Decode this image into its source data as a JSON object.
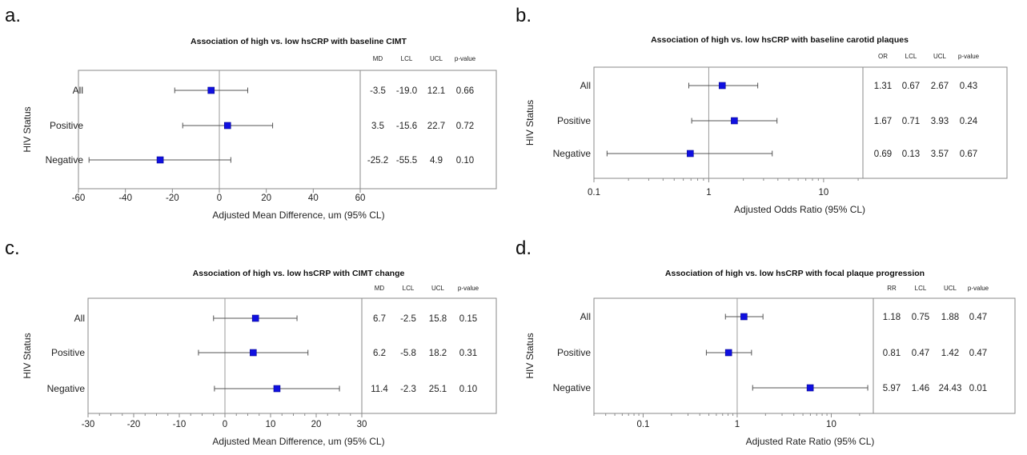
{
  "chart_data": [
    {
      "panel_label": "a.",
      "type": "forest",
      "title": "Association of high vs. low hsCRP with baseline CIMT",
      "xlabel": "Adjusted Mean Difference, um (95% CL)",
      "ylabel": "HIV Status",
      "scale": "linear",
      "xlim": [
        -60,
        60
      ],
      "xticks": [
        "-60",
        "-40",
        "-20",
        "0",
        "20",
        "40",
        "60"
      ],
      "columns": [
        "MD",
        "LCL",
        "UCL",
        "p-value"
      ],
      "reference_line": 0,
      "rows": [
        {
          "label": "All",
          "est": -3.5,
          "lcl": -19.0,
          "ucl": 12.1,
          "cells": [
            "-3.5",
            "-19.0",
            "12.1",
            "0.66"
          ]
        },
        {
          "label": "Positive",
          "est": 3.5,
          "lcl": -15.6,
          "ucl": 22.7,
          "cells": [
            "3.5",
            "-15.6",
            "22.7",
            "0.72"
          ]
        },
        {
          "label": "Negative",
          "est": -25.2,
          "lcl": -55.5,
          "ucl": 4.9,
          "cells": [
            "-25.2",
            "-55.5",
            "4.9",
            "0.10"
          ]
        }
      ]
    },
    {
      "panel_label": "b.",
      "type": "forest",
      "title": "Association of high vs. low hsCRP with baseline carotid plaques",
      "xlabel": "Adjusted Odds Ratio (95% CL)",
      "ylabel": "HIV Status",
      "scale": "log",
      "xlim": [
        0.1,
        22
      ],
      "xticks": [
        "0.1",
        "1",
        "10"
      ],
      "columns": [
        "OR",
        "LCL",
        "UCL",
        "p-value"
      ],
      "reference_line": 1,
      "rows": [
        {
          "label": "All",
          "est": 1.31,
          "lcl": 0.67,
          "ucl": 2.67,
          "cells": [
            "1.31",
            "0.67",
            "2.67",
            "0.43"
          ]
        },
        {
          "label": "Positive",
          "est": 1.67,
          "lcl": 0.71,
          "ucl": 3.93,
          "cells": [
            "1.67",
            "0.71",
            "3.93",
            "0.24"
          ]
        },
        {
          "label": "Negative",
          "est": 0.69,
          "lcl": 0.13,
          "ucl": 3.57,
          "cells": [
            "0.69",
            "0.13",
            "3.57",
            "0.67"
          ]
        }
      ]
    },
    {
      "panel_label": "c.",
      "type": "forest",
      "title": "Association of high vs. low hsCRP with CIMT change",
      "xlabel": "Adjusted Mean Difference, um (95% CL)",
      "ylabel": "HIV Status",
      "scale": "linear",
      "xlim": [
        -30,
        30
      ],
      "xticks": [
        "-30",
        "-20",
        "-10",
        "0",
        "10",
        "20",
        "30"
      ],
      "columns": [
        "MD",
        "LCL",
        "UCL",
        "p-value"
      ],
      "reference_line": 0,
      "rows": [
        {
          "label": "All",
          "est": 6.7,
          "lcl": -2.5,
          "ucl": 15.8,
          "cells": [
            "6.7",
            "-2.5",
            "15.8",
            "0.15"
          ]
        },
        {
          "label": "Positive",
          "est": 6.2,
          "lcl": -5.8,
          "ucl": 18.2,
          "cells": [
            "6.2",
            "-5.8",
            "18.2",
            "0.31"
          ]
        },
        {
          "label": "Negative",
          "est": 11.4,
          "lcl": -2.3,
          "ucl": 25.1,
          "cells": [
            "11.4",
            "-2.3",
            "25.1",
            "0.10"
          ]
        }
      ]
    },
    {
      "panel_label": "d.",
      "type": "forest",
      "title": "Association of high vs. low hsCRP with focal plaque progression",
      "xlabel": "Adjusted Rate Ratio (95% CL)",
      "ylabel": "HIV Status",
      "scale": "log",
      "xlim": [
        0.03,
        28
      ],
      "xticks": [
        "0.1",
        "1",
        "10"
      ],
      "columns": [
        "RR",
        "LCL",
        "UCL",
        "p-value"
      ],
      "reference_line": 1,
      "rows": [
        {
          "label": "All",
          "est": 1.18,
          "lcl": 0.75,
          "ucl": 1.88,
          "cells": [
            "1.18",
            "0.75",
            "1.88",
            "0.47"
          ]
        },
        {
          "label": "Positive",
          "est": 0.81,
          "lcl": 0.47,
          "ucl": 1.42,
          "cells": [
            "0.81",
            "0.47",
            "1.42",
            "0.47"
          ]
        },
        {
          "label": "Negative",
          "est": 5.97,
          "lcl": 1.46,
          "ucl": 24.43,
          "cells": [
            "5.97",
            "1.46",
            "24.43",
            "0.01"
          ]
        }
      ]
    }
  ],
  "colors": {
    "marker": "#1010e0",
    "marker_edge": "#0a0a90",
    "ci_line": "#555555",
    "frame": "#8a8a8a",
    "ref_line": "#9a9a9a"
  }
}
